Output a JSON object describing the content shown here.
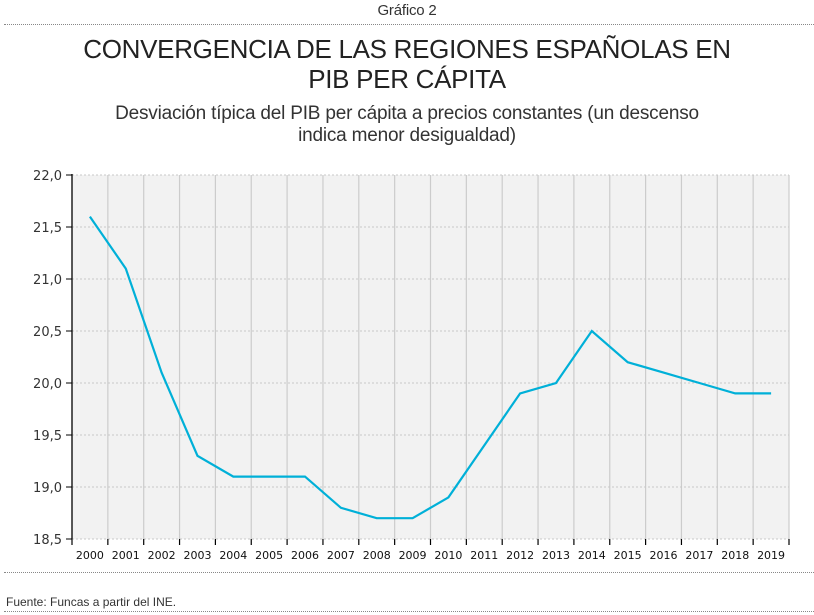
{
  "header": {
    "caption": "Gráfico 2",
    "title_line1": "CONVERGENCIA DE LAS REGIONES ESPAÑOLAS EN",
    "title_line2": "PIB PER CÁPITA",
    "subtitle_line1": "Desviación típica del PIB per cápita a precios constantes (un descenso",
    "subtitle_line2": "indica menor desigualdad)"
  },
  "footer": {
    "source": "Fuente: Funcas a partir del INE."
  },
  "colors": {
    "line": "#00B0D8",
    "plot_background": "#F2F2F2",
    "gridline": "#CCCCCC",
    "axis": "#000000"
  },
  "chart_data": {
    "type": "line",
    "title": "CONVERGENCIA DE LAS REGIONES ESPAÑOLAS EN PIB PER CÁPITA",
    "subtitle": "Desviación típica del PIB per cápita a precios constantes (un descenso indica menor desigualdad)",
    "xlabel": "",
    "ylabel": "",
    "categories": [
      "2000",
      "2001",
      "2002",
      "2003",
      "2004",
      "2005",
      "2006",
      "2007",
      "2008",
      "2009",
      "2010",
      "2011",
      "2012",
      "2013",
      "2014",
      "2015",
      "2016",
      "2017",
      "2018",
      "2019"
    ],
    "series": [
      {
        "name": "Desviación típica del PIB per cápita",
        "values": [
          21.6,
          21.1,
          20.1,
          19.3,
          19.1,
          19.1,
          19.1,
          18.8,
          18.7,
          18.7,
          18.9,
          19.4,
          19.9,
          20.0,
          20.5,
          20.2,
          20.1,
          20.0,
          19.9,
          19.9
        ]
      }
    ],
    "ylim": [
      18.5,
      22.0
    ],
    "yticks": [
      18.5,
      19.0,
      19.5,
      20.0,
      20.5,
      21.0,
      21.5,
      22.0
    ],
    "ytick_labels": [
      "18,5",
      "19,0",
      "19,5",
      "20,0",
      "20,5",
      "21,0",
      "21,5",
      "22,0"
    ],
    "grid": true,
    "legend": "none"
  }
}
